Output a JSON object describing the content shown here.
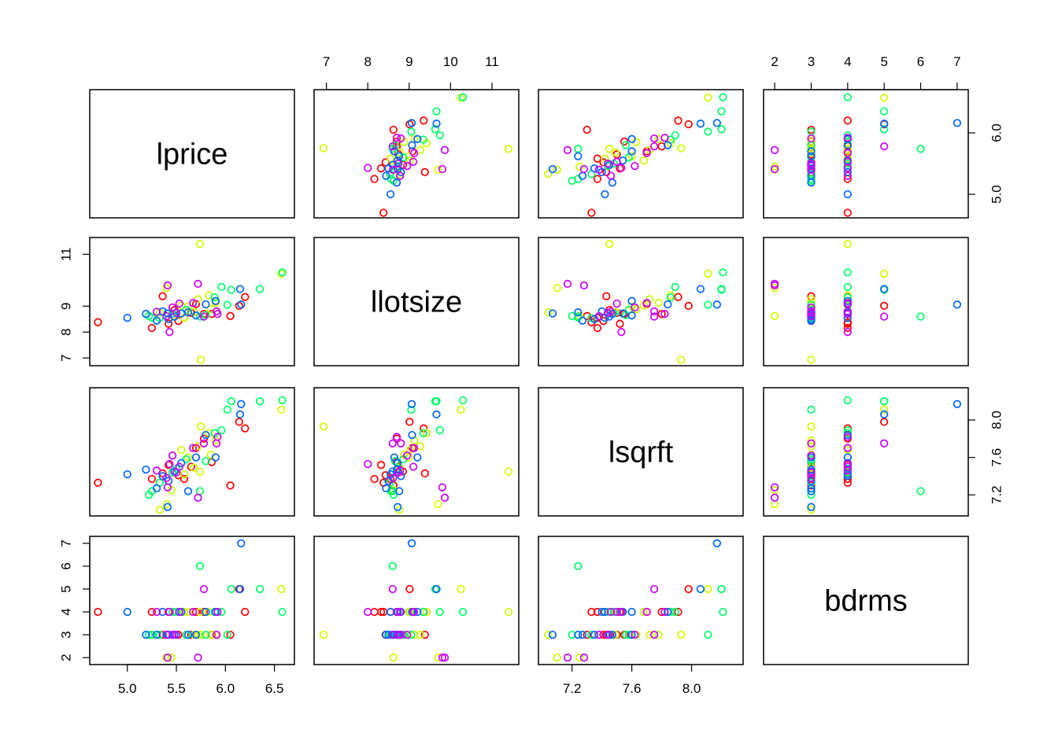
{
  "chart_data": {
    "type": "scatter",
    "kind": "pairs-matrix",
    "variables": [
      {
        "name": "lprice",
        "range": [
          4.7,
          6.62
        ],
        "ticks": [
          5.0,
          5.5,
          6.0,
          6.5
        ],
        "tick_labels": [
          "5.0",
          "5.5",
          "6.0",
          "6.5"
        ],
        "y_ticks": [
          5.0,
          6.0
        ],
        "y_tick_labels": [
          "5.0",
          "6.0"
        ]
      },
      {
        "name": "llotsize",
        "range": [
          6.9,
          11.45
        ],
        "ticks": [
          7,
          8,
          9,
          10,
          11
        ],
        "tick_labels": [
          "7",
          "8",
          "9",
          "10",
          "11"
        ],
        "y_ticks": [
          7,
          8,
          9,
          11
        ],
        "y_tick_labels": [
          "7",
          "8",
          "9",
          "11"
        ]
      },
      {
        "name": "lsqrft",
        "range": [
          7.03,
          8.29
        ],
        "ticks": [
          7.2,
          7.6,
          8.0
        ],
        "tick_labels": [
          "7.2",
          "7.6",
          "8.0"
        ],
        "y_ticks": [
          7.2,
          7.6,
          8.0
        ],
        "y_tick_labels": [
          "7.2",
          "7.6",
          "8.0"
        ]
      },
      {
        "name": "bdrms",
        "range": [
          1.92,
          7.08
        ],
        "ticks": [
          2,
          3,
          4,
          5,
          6,
          7
        ],
        "tick_labels": [
          "2",
          "3",
          "4",
          "5",
          "6",
          "7"
        ],
        "y_ticks": [
          2,
          3,
          4,
          5,
          6,
          7
        ],
        "y_tick_labels": [
          "2",
          "3",
          "4",
          "5",
          "6",
          "7"
        ]
      }
    ],
    "color_groups": [
      "#FF0000",
      "#CCFF00",
      "#00FF66",
      "#0066FF",
      "#CC00FF"
    ],
    "point_columns": [
      "lprice",
      "llotsize",
      "lsqrft",
      "bdrms",
      "group"
    ],
    "points": [
      [
        4.7,
        8.38,
        7.33,
        4,
        0
      ],
      [
        5.25,
        8.16,
        7.37,
        4,
        0
      ],
      [
        5.36,
        9.38,
        7.43,
        3,
        0
      ],
      [
        5.42,
        8.32,
        7.52,
        4,
        0
      ],
      [
        5.48,
        8.85,
        7.45,
        3,
        0
      ],
      [
        5.58,
        8.55,
        7.37,
        4,
        0
      ],
      [
        5.65,
        8.74,
        7.5,
        3,
        0
      ],
      [
        5.7,
        9.08,
        7.7,
        4,
        0
      ],
      [
        5.86,
        8.7,
        7.55,
        3,
        0
      ],
      [
        6.05,
        8.62,
        7.3,
        3,
        0
      ],
      [
        6.14,
        9.01,
        7.98,
        5,
        0
      ],
      [
        6.2,
        9.35,
        7.91,
        4,
        0
      ],
      [
        5.52,
        8.43,
        7.41,
        3,
        0
      ],
      [
        5.78,
        8.7,
        7.8,
        4,
        0
      ],
      [
        5.33,
        8.76,
        7.04,
        3,
        1
      ],
      [
        5.4,
        9.7,
        7.1,
        2,
        1
      ],
      [
        5.55,
        9.02,
        7.68,
        4,
        1
      ],
      [
        5.72,
        9.27,
        7.72,
        3,
        1
      ],
      [
        5.75,
        6.93,
        7.93,
        3,
        1
      ],
      [
        5.83,
        9.42,
        7.86,
        4,
        1
      ],
      [
        5.85,
        8.88,
        7.63,
        3,
        1
      ],
      [
        6.57,
        10.25,
        8.11,
        5,
        1
      ],
      [
        5.58,
        8.55,
        7.42,
        4,
        1
      ],
      [
        5.68,
        8.77,
        7.49,
        3,
        1
      ],
      [
        5.74,
        11.4,
        7.45,
        4,
        1
      ],
      [
        5.45,
        8.62,
        7.25,
        2,
        1
      ],
      [
        5.62,
        8.99,
        7.6,
        4,
        1
      ],
      [
        5.9,
        9.13,
        7.78,
        3,
        1
      ],
      [
        5.25,
        8.56,
        7.24,
        3,
        2
      ],
      [
        5.33,
        8.54,
        7.33,
        3,
        2
      ],
      [
        5.46,
        8.71,
        7.44,
        4,
        2
      ],
      [
        5.6,
        8.86,
        7.58,
        3,
        2
      ],
      [
        5.74,
        8.6,
        7.24,
        6,
        2
      ],
      [
        5.89,
        9.34,
        7.86,
        4,
        2
      ],
      [
        6.06,
        9.63,
        8.2,
        5,
        2
      ],
      [
        6.35,
        9.66,
        8.2,
        5,
        2
      ],
      [
        6.58,
        10.3,
        8.21,
        4,
        2
      ],
      [
        6.02,
        9.05,
        8.11,
        3,
        2
      ],
      [
        5.8,
        8.66,
        7.56,
        3,
        2
      ],
      [
        5.5,
        8.73,
        7.48,
        4,
        2
      ],
      [
        5.22,
        8.62,
        7.2,
        3,
        2
      ],
      [
        5.96,
        9.74,
        7.89,
        4,
        2
      ],
      [
        5.0,
        8.55,
        7.42,
        4,
        3
      ],
      [
        5.19,
        8.7,
        7.47,
        3,
        3
      ],
      [
        5.3,
        8.44,
        7.27,
        3,
        3
      ],
      [
        5.41,
        8.72,
        7.07,
        3,
        3
      ],
      [
        5.55,
        8.72,
        7.54,
        4,
        3
      ],
      [
        5.62,
        8.76,
        7.24,
        3,
        3
      ],
      [
        5.7,
        8.64,
        7.6,
        3,
        3
      ],
      [
        5.8,
        9.07,
        7.84,
        4,
        3
      ],
      [
        6.15,
        9.66,
        8.06,
        5,
        3
      ],
      [
        6.16,
        9.06,
        8.17,
        7,
        3
      ],
      [
        5.48,
        8.6,
        7.45,
        3,
        3
      ],
      [
        5.36,
        8.8,
        7.4,
        4,
        3
      ],
      [
        5.42,
        8.5,
        7.35,
        3,
        3
      ],
      [
        5.9,
        9.2,
        7.6,
        4,
        3
      ],
      [
        5.43,
        8.0,
        7.53,
        4,
        4
      ],
      [
        5.41,
        9.8,
        7.28,
        2,
        4
      ],
      [
        5.46,
        8.95,
        7.62,
        3,
        4
      ],
      [
        5.53,
        9.1,
        7.5,
        4,
        4
      ],
      [
        5.72,
        9.86,
        7.17,
        2,
        4
      ],
      [
        5.78,
        8.6,
        7.75,
        5,
        4
      ],
      [
        5.91,
        8.8,
        7.75,
        3,
        4
      ],
      [
        5.92,
        8.7,
        7.82,
        4,
        4
      ],
      [
        5.4,
        8.61,
        7.38,
        3,
        4
      ],
      [
        5.5,
        8.74,
        7.44,
        3,
        4
      ],
      [
        5.67,
        9.12,
        7.7,
        4,
        4
      ],
      [
        5.3,
        8.78,
        7.46,
        4,
        4
      ]
    ]
  }
}
